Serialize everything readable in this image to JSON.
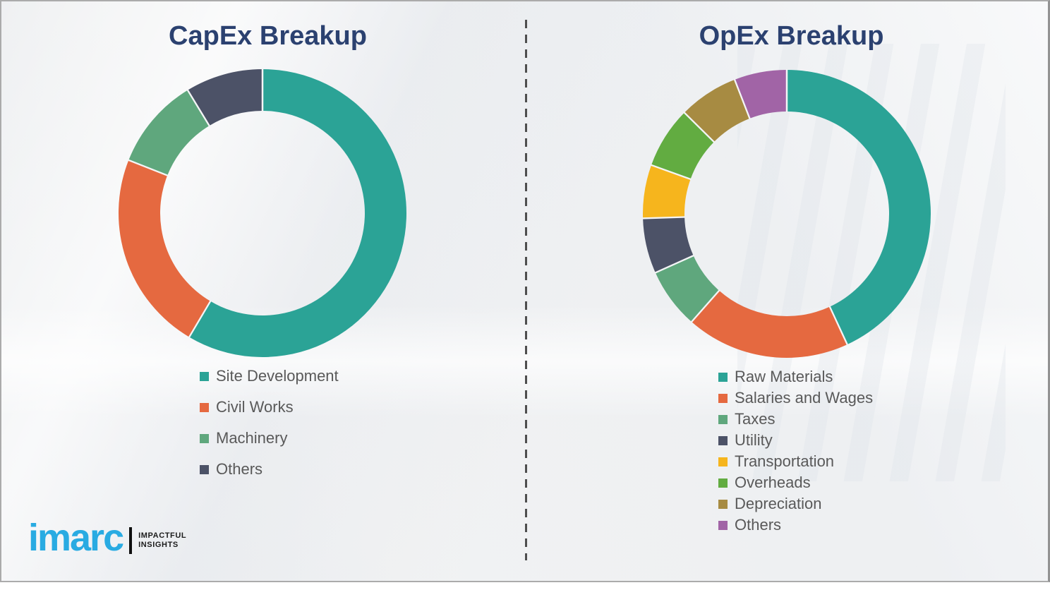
{
  "page": {
    "background_color": "#f1f2f3",
    "border_color": "#ababab",
    "divider_color": "#4e4e4e",
    "title_color": "#2b4170",
    "legend_text_color": "#595959"
  },
  "chart_data": [
    {
      "type": "pie",
      "subtype": "donut",
      "title": "CapEx Breakup",
      "categories": [
        "Site Development",
        "Civil Works",
        "Machinery",
        "Others"
      ],
      "values": [
        58.5,
        22.5,
        10.3,
        8.7
      ],
      "colors": [
        "#2BA396",
        "#E56940",
        "#5FA77D",
        "#4C5267"
      ],
      "start_angle_deg": 0,
      "direction": "clockwise",
      "values_unit": "percent-of-total",
      "values_note": "no numeric labels shown in image; values estimated from arc angles",
      "legend_position": "below-chart-left",
      "ring_thickness_ratio": 0.29
    },
    {
      "type": "pie",
      "subtype": "donut",
      "title": "OpEx Breakup",
      "categories": [
        "Raw Materials",
        "Salaries and Wages",
        "Taxes",
        "Utility",
        "Transportation",
        "Overheads",
        "Depreciation",
        "Others"
      ],
      "values": [
        43.1,
        18.4,
        6.8,
        6.2,
        6.0,
        6.9,
        6.7,
        5.9
      ],
      "colors": [
        "#2BA396",
        "#E56940",
        "#5FA77D",
        "#4C5267",
        "#F6B51D",
        "#62AC41",
        "#A78B42",
        "#A164A6"
      ],
      "start_angle_deg": 0,
      "direction": "clockwise",
      "values_unit": "percent-of-total",
      "values_note": "no numeric labels shown in image; values estimated from arc angles",
      "legend_position": "below-chart-left",
      "ring_thickness_ratio": 0.29
    }
  ],
  "branding": {
    "logo_text": "imarc",
    "logo_color": "#29abe2",
    "tagline_line1": "IMPACTFUL",
    "tagline_line2": "INSIGHTS"
  }
}
